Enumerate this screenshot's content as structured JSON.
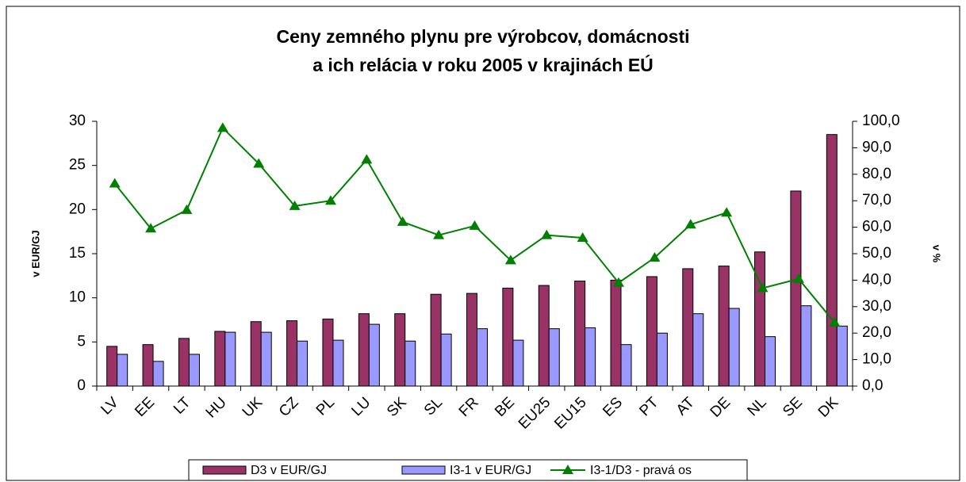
{
  "chart_data": {
    "type": "bar",
    "title": [
      "Ceny zemného plynu pre výrobcov, domácnosti",
      "a ich relácia v roku 2005 v krajinách EÚ"
    ],
    "categories": [
      "LV",
      "EE",
      "LT",
      "HU",
      "UK",
      "CZ",
      "PL",
      "LU",
      "SK",
      "SL",
      "FR",
      "BE",
      "EU25",
      "EU15",
      "ES",
      "PT",
      "AT",
      "DE",
      "NL",
      "SE",
      "DK"
    ],
    "series": [
      {
        "name": "D3 v EUR/GJ",
        "color": "#993366",
        "type": "bar",
        "values": [
          4.5,
          4.7,
          5.4,
          6.2,
          7.3,
          7.4,
          7.6,
          8.2,
          8.2,
          10.4,
          10.5,
          11.1,
          11.4,
          11.9,
          12.0,
          12.4,
          13.3,
          13.6,
          15.2,
          22.1,
          28.5
        ]
      },
      {
        "name": "I3-1 v EUR/GJ",
        "color": "#9999ff",
        "type": "bar",
        "values": [
          3.6,
          2.8,
          3.6,
          6.1,
          6.1,
          5.1,
          5.2,
          7.0,
          5.1,
          5.9,
          6.5,
          5.2,
          6.5,
          6.6,
          4.7,
          6.0,
          8.2,
          8.8,
          5.6,
          9.1,
          6.8
        ]
      },
      {
        "name": "I3-1/D3 - pravá os",
        "color": "#008000",
        "type": "line",
        "axis": "y2",
        "values": [
          76.5,
          59.5,
          66.5,
          97.5,
          84,
          68,
          70,
          85.5,
          62,
          57,
          60.5,
          47.5,
          57,
          56,
          39,
          48.5,
          61,
          65.5,
          37,
          40.5,
          24
        ]
      }
    ],
    "y_label": "v EUR/GJ",
    "y2_label": "v %",
    "ylim": [
      0,
      30
    ],
    "yticks": [
      0,
      5,
      10,
      15,
      20,
      25,
      30
    ],
    "y2lim": [
      0,
      100
    ],
    "y2ticks": [
      {
        "value": 0,
        "label": "0,0"
      },
      {
        "value": 10,
        "label": "10,0"
      },
      {
        "value": 20,
        "label": "20,0"
      },
      {
        "value": 30,
        "label": "30,0"
      },
      {
        "value": 40,
        "label": "40,0"
      },
      {
        "value": 50,
        "label": "50,0"
      },
      {
        "value": 60,
        "label": "60,0"
      },
      {
        "value": 70,
        "label": "70,0"
      },
      {
        "value": 80,
        "label": "80,0"
      },
      {
        "value": 90,
        "label": "90,0"
      },
      {
        "value": 100,
        "label": "100,0"
      }
    ],
    "legend": "bottom"
  }
}
